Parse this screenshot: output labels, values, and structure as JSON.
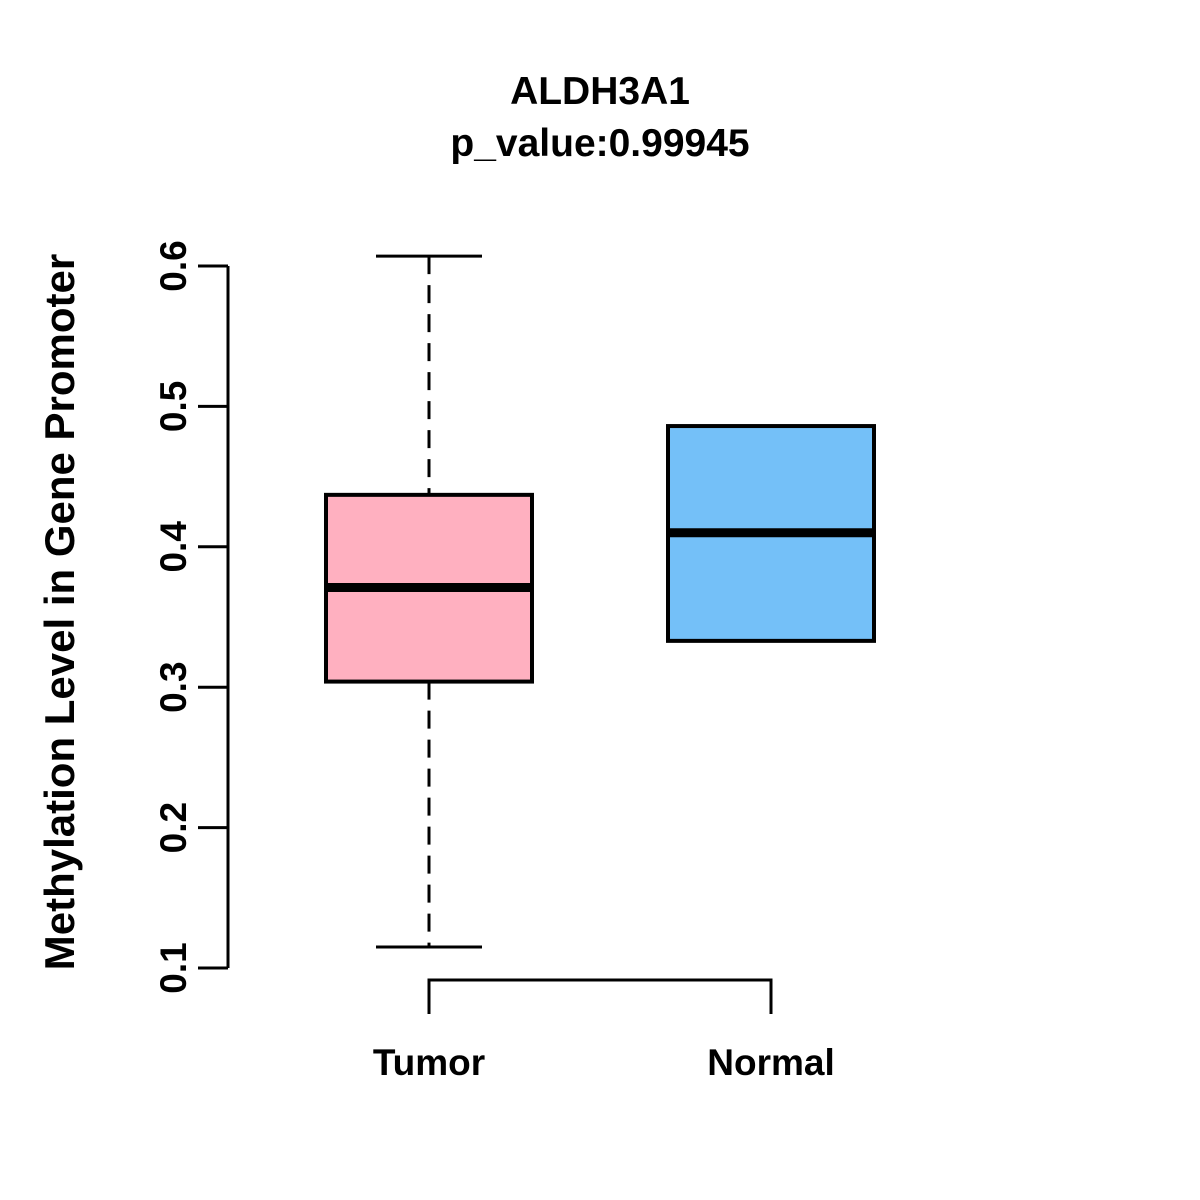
{
  "figure": {
    "background": "#FFFFFF",
    "axis_color": "#000000",
    "text_color": "#000000"
  },
  "chart_data": {
    "type": "boxplot",
    "title": "ALDH3A1",
    "subtitle": "p_value:0.99945",
    "ylabel": "Methylation Level in Gene Promoter",
    "xlabel": "",
    "categories": [
      "Tumor",
      "Normal"
    ],
    "ylim": [
      0.1,
      0.6
    ],
    "yticks": [
      0.1,
      0.2,
      0.3,
      0.4,
      0.5,
      0.6
    ],
    "ytick_labels": [
      "0.1",
      "0.2",
      "0.3",
      "0.4",
      "0.5",
      "0.6"
    ],
    "grid": false,
    "legend": null,
    "series": [
      {
        "name": "Tumor",
        "color": "#FFB0C0",
        "lower_whisker": 0.115,
        "q1": 0.304,
        "median": 0.371,
        "q3": 0.437,
        "upper_whisker": 0.607
      },
      {
        "name": "Normal",
        "color": "#74C0F8",
        "lower_whisker": 0.333,
        "q1": 0.333,
        "median": 0.41,
        "q3": 0.486,
        "upper_whisker": 0.486
      }
    ]
  }
}
